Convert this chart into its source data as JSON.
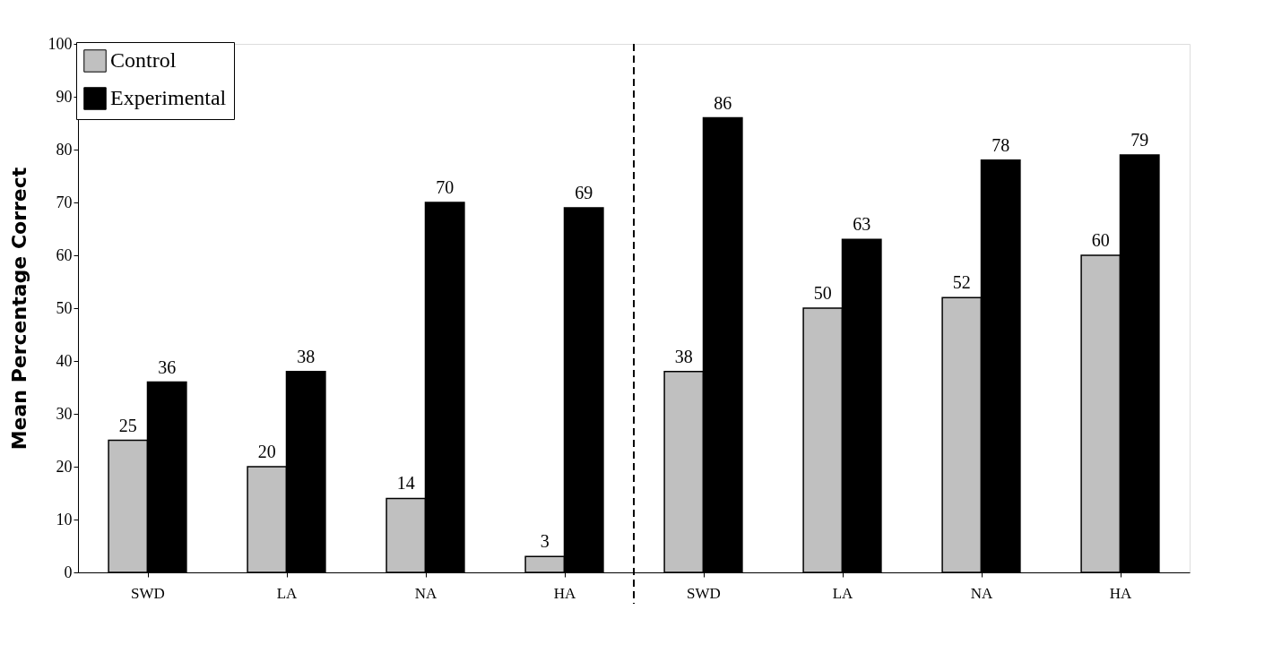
{
  "chart_data": {
    "type": "bar",
    "categories": [
      "SWD",
      "LA",
      "NA",
      "HA",
      "SWD",
      "LA",
      "NA",
      "HA"
    ],
    "ylabel": "Mean  Percentage  Correct",
    "series": [
      {
        "name": "Control",
        "color": "#c0c0c0",
        "values": [
          25,
          20,
          14,
          3,
          38,
          50,
          52,
          60
        ]
      },
      {
        "name": "Experimental",
        "color": "#000000",
        "values": [
          36,
          38,
          70,
          69,
          86,
          63,
          78,
          79
        ]
      }
    ],
    "ylim": [
      0,
      100
    ],
    "yticks": [
      0,
      10,
      20,
      30,
      40,
      50,
      60,
      70,
      80,
      90,
      100
    ],
    "data_labels": true,
    "grid": false,
    "legend": "top left"
  }
}
